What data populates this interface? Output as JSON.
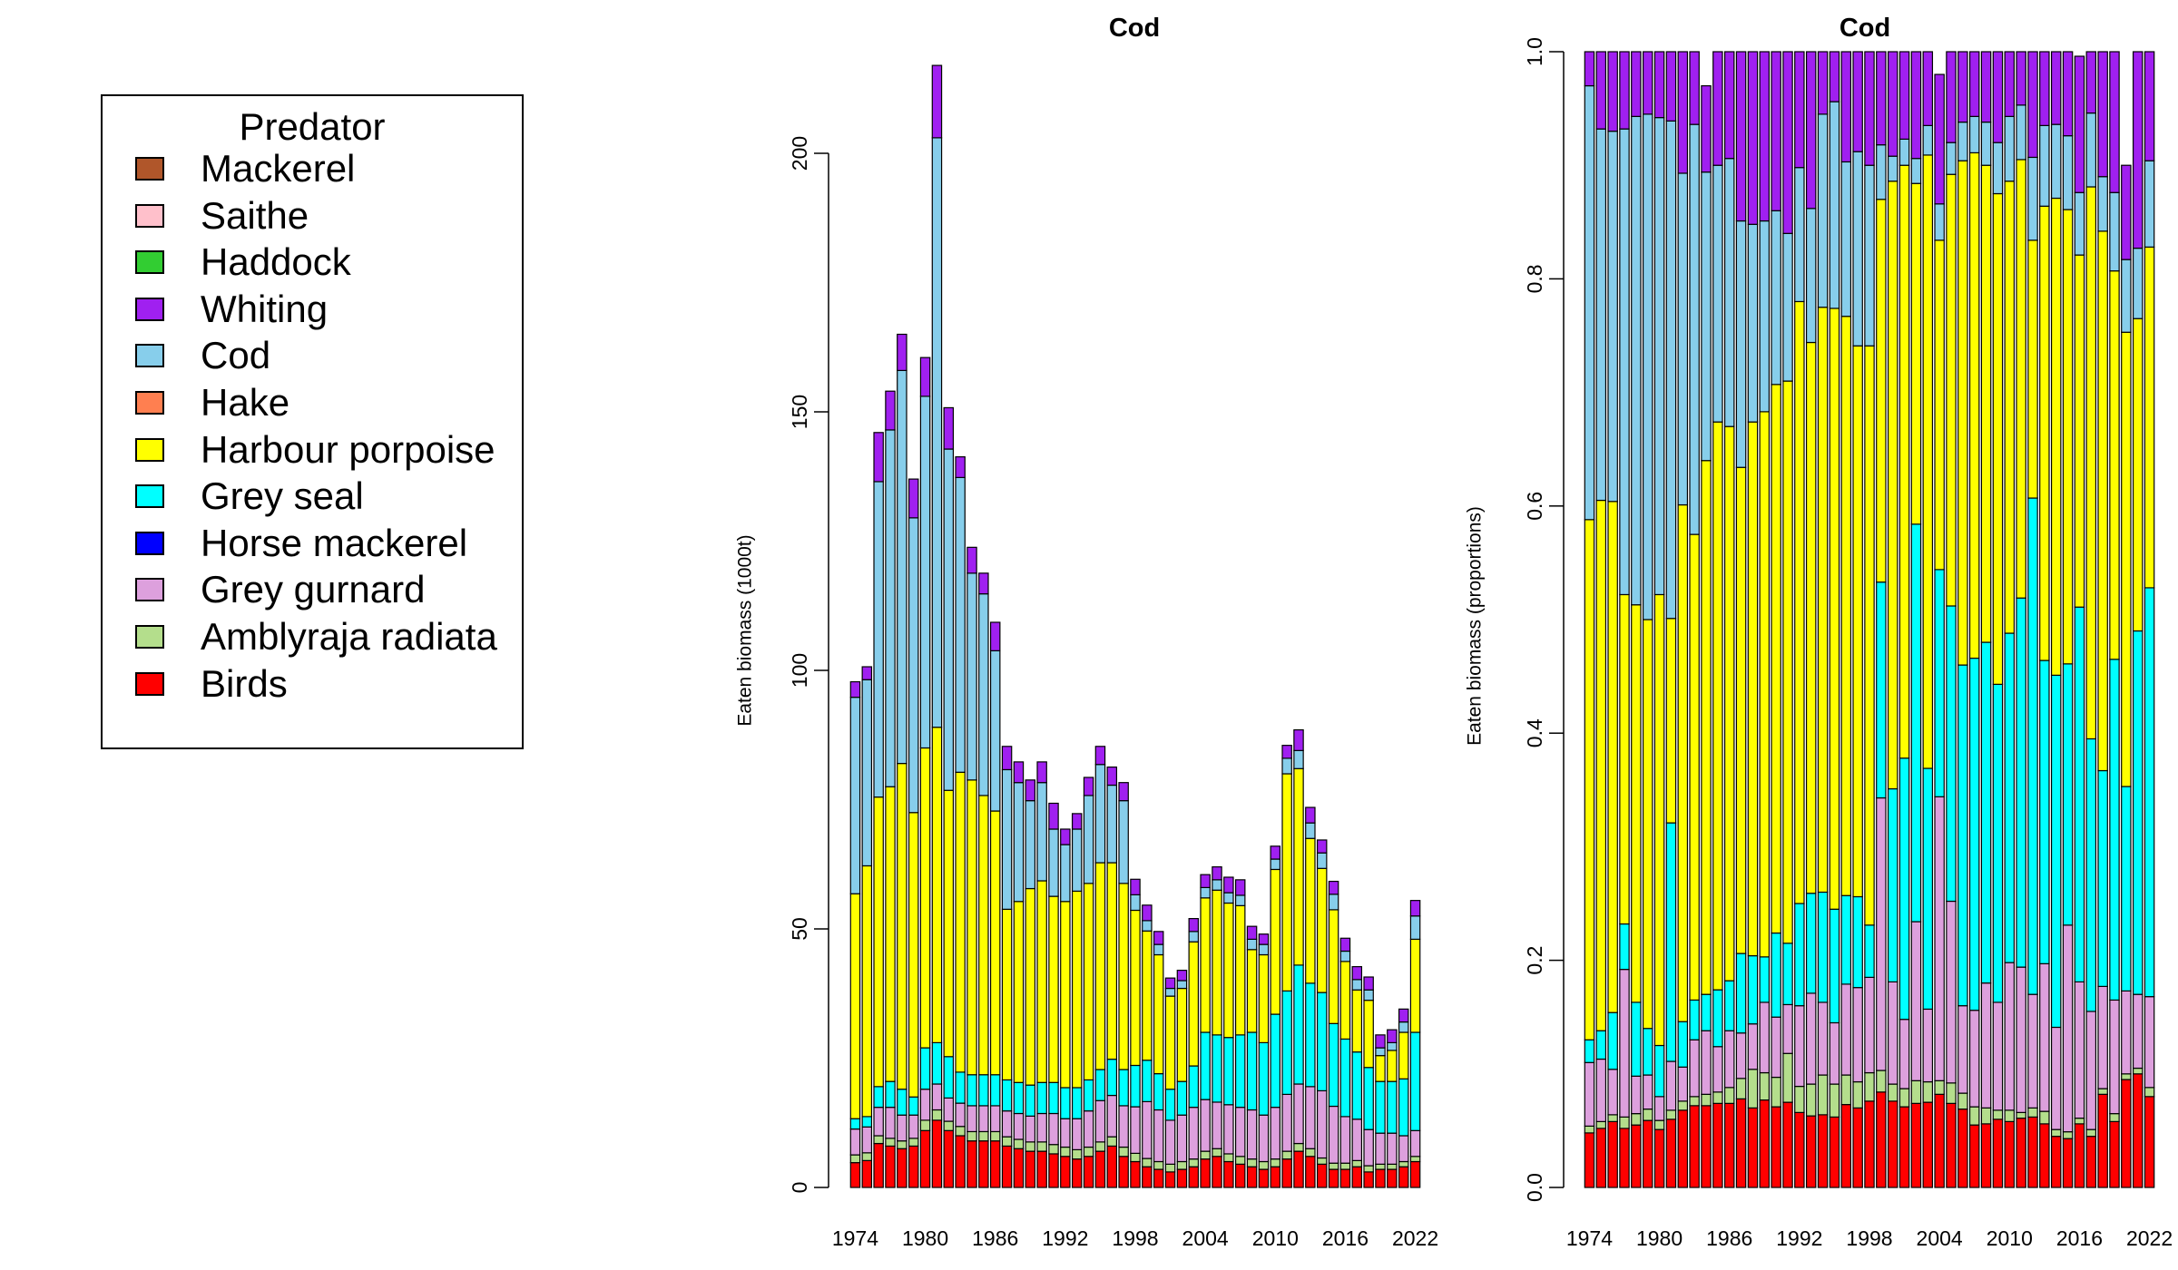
{
  "legend": {
    "title": "Predator",
    "entries": [
      {
        "label": "Mackerel",
        "color": "#b0562a"
      },
      {
        "label": "Saithe",
        "color": "#ffc0cb"
      },
      {
        "label": "Haddock",
        "color": "#32cd32"
      },
      {
        "label": "Whiting",
        "color": "#a020f0"
      },
      {
        "label": "Cod",
        "color": "#87ceeb"
      },
      {
        "label": "Hake",
        "color": "#ff7f50"
      },
      {
        "label": "Harbour porpoise",
        "color": "#ffff00"
      },
      {
        "label": "Grey seal",
        "color": "#00ffff"
      },
      {
        "label": "Horse mackerel",
        "color": "#0000ff"
      },
      {
        "label": "Grey gurnard",
        "color": "#dda0dd"
      },
      {
        "label": "Amblyraja radiata",
        "color": "#b4de8c"
      },
      {
        "label": "Birds",
        "color": "#ff0000"
      }
    ]
  },
  "chart_data": [
    {
      "type": "bar",
      "stacked": true,
      "title": "Cod",
      "xlabel": "",
      "ylabel": "Eaten biomass (1000t)",
      "ylim": [
        0,
        220
      ],
      "yticks": [
        0,
        50,
        100,
        150,
        200
      ],
      "xticks": [
        "1974",
        "1980",
        "1986",
        "1992",
        "1998",
        "2004",
        "2010",
        "2016",
        "2022"
      ],
      "categories": [
        "1974",
        "1975",
        "1976",
        "1977",
        "1978",
        "1979",
        "1980",
        "1981",
        "1982",
        "1983",
        "1984",
        "1985",
        "1986",
        "1987",
        "1988",
        "1989",
        "1990",
        "1991",
        "1992",
        "1993",
        "1994",
        "1995",
        "1996",
        "1997",
        "1998",
        "1999",
        "2000",
        "2001",
        "2002",
        "2003",
        "2004",
        "2005",
        "2006",
        "2007",
        "2008",
        "2009",
        "2010",
        "2011",
        "2012",
        "2013",
        "2014",
        "2015",
        "2016",
        "2017",
        "2018",
        "2019",
        "2020",
        "2021",
        "2022"
      ],
      "series": [
        {
          "name": "Birds",
          "color": "#ff0000",
          "values": [
            4.8,
            5.2,
            8.5,
            8,
            7.5,
            8,
            11,
            13,
            11,
            10,
            9,
            9,
            9,
            8,
            7.5,
            7,
            7,
            6.5,
            6,
            5.5,
            6,
            7,
            8,
            6,
            5,
            4,
            3.5,
            3,
            3.5,
            4,
            5.5,
            6,
            5,
            4.5,
            4,
            3.5,
            4,
            5.5,
            7,
            6,
            4.5,
            3.5,
            3.5,
            4,
            3,
            3.5,
            3.5,
            4,
            5
          ]
        },
        {
          "name": "Amblyraja radiata",
          "color": "#b4de8c",
          "values": [
            1.5,
            1.5,
            1.5,
            1.5,
            1.5,
            1.5,
            2,
            2,
            1.8,
            1.8,
            1.8,
            1.8,
            1.8,
            1.8,
            1.8,
            1.8,
            1.8,
            1.8,
            1.8,
            1.8,
            1.8,
            1.8,
            1.8,
            1.8,
            1.6,
            1.6,
            1.5,
            1.5,
            1.5,
            1.5,
            1.5,
            1.5,
            1.5,
            1.5,
            1.5,
            1.5,
            1.5,
            1.5,
            1.5,
            1.5,
            1.2,
            1.2,
            1.2,
            1.2,
            1.2,
            1,
            1,
            1,
            1
          ]
        },
        {
          "name": "Grey gurnard",
          "color": "#dda0dd",
          "values": [
            5,
            5,
            5.5,
            6,
            5,
            4.5,
            6,
            5,
            4.5,
            4.5,
            5,
            5,
            5,
            5,
            5,
            5,
            5.5,
            6,
            5.5,
            6,
            7,
            8,
            8,
            8,
            9,
            11,
            10,
            8.5,
            9,
            10,
            10,
            9,
            9.5,
            9.5,
            9.5,
            9,
            10,
            11,
            11.5,
            12,
            13,
            11,
            9,
            8,
            7,
            6,
            6,
            5,
            5
          ]
        },
        {
          "name": "Grey seal",
          "color": "#00ffff",
          "values": [
            2,
            2,
            4,
            5,
            5,
            3.5,
            8,
            8,
            8,
            6,
            6,
            6,
            6,
            6,
            6,
            6,
            6,
            6,
            6,
            6,
            6,
            6,
            7,
            7,
            8,
            8,
            7,
            6,
            6.5,
            8,
            13,
            13,
            13,
            14,
            15,
            14,
            18,
            20,
            23,
            20,
            19,
            16,
            15,
            13,
            12,
            10,
            10,
            11,
            19
          ]
        },
        {
          "name": "Harbour porpoise",
          "color": "#ffff00",
          "values": [
            43.5,
            48.5,
            56,
            57,
            63,
            55,
            58,
            61,
            51.5,
            58,
            57,
            54,
            51,
            33,
            35,
            38,
            39,
            36,
            36,
            38,
            38,
            40,
            38,
            36,
            30,
            25,
            23,
            18,
            18,
            24,
            26,
            28,
            26,
            25,
            16,
            17,
            28,
            42,
            38,
            28,
            24,
            22,
            15,
            12,
            13,
            5,
            6,
            9,
            18
          ]
        },
        {
          "name": "Cod",
          "color": "#87ceeb",
          "values": [
            38,
            36,
            61,
            69,
            76,
            57,
            68,
            114,
            66,
            57,
            40,
            39,
            31,
            27,
            23,
            17,
            19,
            13,
            11,
            12,
            17,
            19,
            15,
            16,
            3,
            2,
            2,
            1.5,
            1.5,
            2,
            2,
            2,
            2,
            2,
            2,
            2,
            2,
            3,
            3.5,
            3,
            3,
            3,
            2,
            2,
            2,
            1.5,
            1.5,
            2,
            4.5
          ]
        },
        {
          "name": "Whiting",
          "color": "#a020f0",
          "values": [
            3,
            2.5,
            9.5,
            7.5,
            7,
            7.5,
            7.5,
            14,
            8,
            4,
            5,
            4,
            5.5,
            4.5,
            4,
            4,
            4,
            5,
            3,
            3,
            3.5,
            3.5,
            3.5,
            3.5,
            3,
            3,
            2.5,
            2,
            2,
            2.5,
            2.5,
            2.5,
            3,
            3,
            2.5,
            2,
            2.5,
            2.5,
            4,
            3,
            2.5,
            2.5,
            2.5,
            2.5,
            2.5,
            2.5,
            2.5,
            2.5,
            3
          ]
        }
      ]
    },
    {
      "type": "bar",
      "stacked": true,
      "title": "Cod",
      "xlabel": "",
      "ylabel": "Eaten biomass (proportions)",
      "ylim": [
        0,
        1
      ],
      "yticks": [
        "0.0",
        "0.2",
        "0.4",
        "0.6",
        "0.8",
        "1.0"
      ],
      "xticks": [
        "1974",
        "1980",
        "1986",
        "1992",
        "1998",
        "2004",
        "2010",
        "2016",
        "2022"
      ],
      "categories": [
        "1974",
        "1975",
        "1976",
        "1977",
        "1978",
        "1979",
        "1980",
        "1981",
        "1982",
        "1983",
        "1984",
        "1985",
        "1986",
        "1987",
        "1988",
        "1989",
        "1990",
        "1991",
        "1992",
        "1993",
        "1994",
        "1995",
        "1996",
        "1997",
        "1998",
        "1999",
        "2000",
        "2001",
        "2002",
        "2003",
        "2004",
        "2005",
        "2006",
        "2007",
        "2008",
        "2009",
        "2010",
        "2011",
        "2012",
        "2013",
        "2014",
        "2015",
        "2016",
        "2017",
        "2018",
        "2019",
        "2020",
        "2021",
        "2022"
      ],
      "series": [
        {
          "name": "Birds",
          "color": "#ff0000",
          "values": [
            0.048,
            0.052,
            0.058,
            0.052,
            0.055,
            0.059,
            0.051,
            0.06,
            0.068,
            0.072,
            0.072,
            0.074,
            0.074,
            0.078,
            0.07,
            0.077,
            0.071,
            0.075,
            0.066,
            0.063,
            0.064,
            0.062,
            0.073,
            0.07,
            0.076,
            0.084,
            0.076,
            0.071,
            0.074,
            0.075,
            0.082,
            0.074,
            0.069,
            0.055,
            0.056,
            0.06,
            0.058,
            0.061,
            0.062,
            0.056,
            0.045,
            0.043,
            0.056,
            0.045,
            0.082,
            0.058,
            0.095,
            0.1,
            0.08
          ]
        },
        {
          "name": "Amblyraja radiata",
          "color": "#b4de8c",
          "values": [
            0.006,
            0.006,
            0.006,
            0.01,
            0.01,
            0.01,
            0.008,
            0.008,
            0.008,
            0.008,
            0.01,
            0.01,
            0.014,
            0.018,
            0.034,
            0.024,
            0.026,
            0.043,
            0.023,
            0.028,
            0.035,
            0.029,
            0.026,
            0.023,
            0.025,
            0.019,
            0.015,
            0.016,
            0.02,
            0.018,
            0.012,
            0.018,
            0.014,
            0.016,
            0.014,
            0.008,
            0.01,
            0.005,
            0.008,
            0.011,
            0.006,
            0.006,
            0.005,
            0.006,
            0.005,
            0.007,
            0.005,
            0.005,
            0.008
          ]
        },
        {
          "name": "Grey gurnard",
          "color": "#dda0dd",
          "values": [
            0.056,
            0.055,
            0.04,
            0.13,
            0.033,
            0.03,
            0.021,
            0.043,
            0.03,
            0.05,
            0.056,
            0.04,
            0.05,
            0.04,
            0.04,
            0.062,
            0.053,
            0.043,
            0.071,
            0.08,
            0.064,
            0.054,
            0.08,
            0.083,
            0.084,
            0.24,
            0.09,
            0.061,
            0.14,
            0.064,
            0.25,
            0.16,
            0.077,
            0.085,
            0.11,
            0.095,
            0.13,
            0.128,
            0.1,
            0.13,
            0.09,
            0.182,
            0.12,
            0.104,
            0.09,
            0.1,
            0.073,
            0.065,
            0.08
          ]
        },
        {
          "name": "Grey seal",
          "color": "#00ffff",
          "values": [
            0.02,
            0.025,
            0.05,
            0.04,
            0.065,
            0.041,
            0.045,
            0.21,
            0.04,
            0.035,
            0.032,
            0.05,
            0.044,
            0.07,
            0.06,
            0.04,
            0.074,
            0.054,
            0.09,
            0.088,
            0.097,
            0.1,
            0.078,
            0.08,
            0.046,
            0.19,
            0.17,
            0.23,
            0.35,
            0.212,
            0.2,
            0.26,
            0.3,
            0.31,
            0.3,
            0.28,
            0.29,
            0.325,
            0.437,
            0.267,
            0.31,
            0.23,
            0.33,
            0.24,
            0.19,
            0.3,
            0.18,
            0.32,
            0.36
          ]
        },
        {
          "name": "Harbour porpoise",
          "color": "#ffff00",
          "values": [
            0.458,
            0.467,
            0.45,
            0.29,
            0.35,
            0.36,
            0.397,
            0.18,
            0.455,
            0.41,
            0.47,
            0.5,
            0.488,
            0.428,
            0.47,
            0.48,
            0.483,
            0.495,
            0.53,
            0.485,
            0.515,
            0.529,
            0.51,
            0.485,
            0.51,
            0.337,
            0.535,
            0.522,
            0.3,
            0.54,
            0.29,
            0.38,
            0.444,
            0.445,
            0.42,
            0.432,
            0.398,
            0.386,
            0.227,
            0.4,
            0.42,
            0.4,
            0.31,
            0.486,
            0.475,
            0.342,
            0.4,
            0.275,
            0.3
          ]
        },
        {
          "name": "Cod",
          "color": "#87ceeb",
          "values": [
            0.382,
            0.327,
            0.326,
            0.41,
            0.43,
            0.445,
            0.42,
            0.438,
            0.292,
            0.361,
            0.254,
            0.226,
            0.236,
            0.217,
            0.174,
            0.168,
            0.153,
            0.13,
            0.118,
            0.118,
            0.17,
            0.182,
            0.136,
            0.171,
            0.159,
            0.048,
            0.022,
            0.023,
            0.022,
            0.026,
            0.032,
            0.028,
            0.034,
            0.032,
            0.038,
            0.045,
            0.057,
            0.048,
            0.073,
            0.071,
            0.065,
            0.065,
            0.055,
            0.065,
            0.048,
            0.069,
            0.064,
            0.062,
            0.076
          ]
        },
        {
          "name": "Whiting",
          "color": "#a020f0",
          "values": [
            0.03,
            0.068,
            0.07,
            0.068,
            0.057,
            0.055,
            0.058,
            0.061,
            0.107,
            0.064,
            0.076,
            0.1,
            0.094,
            0.149,
            0.152,
            0.149,
            0.14,
            0.16,
            0.102,
            0.138,
            0.055,
            0.044,
            0.097,
            0.088,
            0.1,
            0.082,
            0.092,
            0.077,
            0.094,
            0.065,
            0.114,
            0.08,
            0.062,
            0.057,
            0.062,
            0.08,
            0.057,
            0.047,
            0.093,
            0.065,
            0.064,
            0.074,
            0.12,
            0.054,
            0.11,
            0.124,
            0.083,
            0.173,
            0.096
          ]
        }
      ]
    }
  ]
}
